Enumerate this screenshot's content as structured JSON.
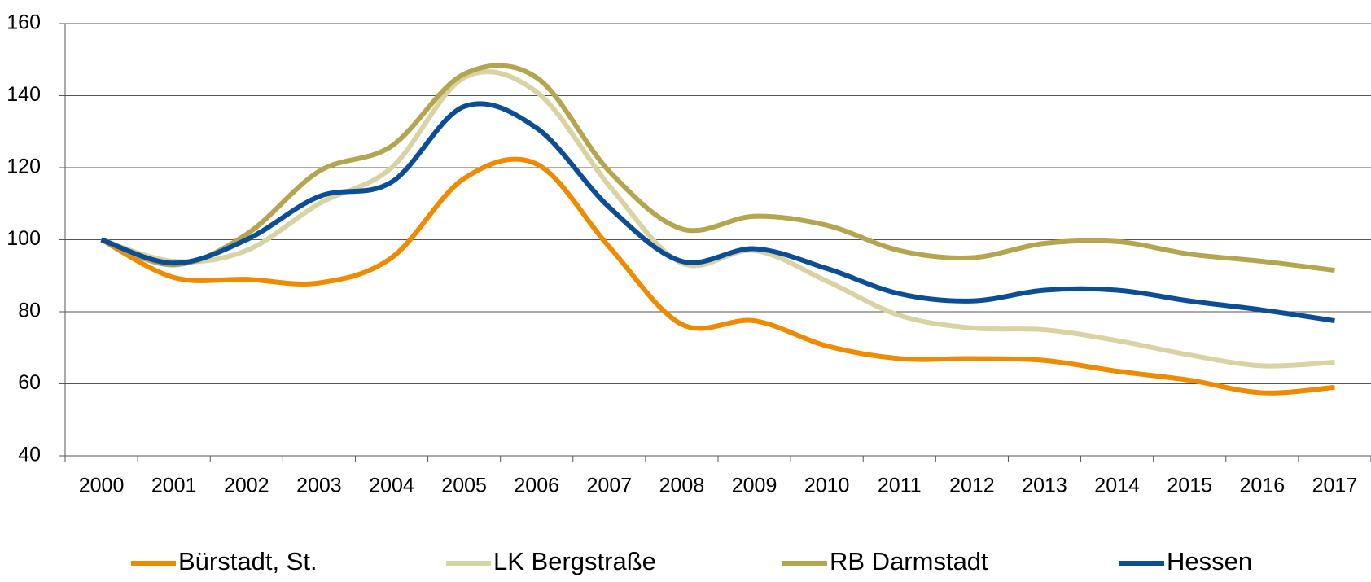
{
  "chart_data": {
    "type": "line",
    "categories": [
      "2000",
      "2001",
      "2002",
      "2003",
      "2004",
      "2005",
      "2006",
      "2007",
      "2008",
      "2009",
      "2010",
      "2011",
      "2012",
      "2013",
      "2014",
      "2015",
      "2016",
      "2017"
    ],
    "series": [
      {
        "name": "Bürstadt, St.",
        "color": "#f08a00",
        "values": [
          100,
          89.5,
          89,
          88,
          95,
          117,
          121,
          98,
          76.5,
          77.5,
          70.5,
          67,
          67,
          66.5,
          63.5,
          61,
          57.5,
          59
        ]
      },
      {
        "name": "LK Bergstraße",
        "color": "#d9d2a2",
        "values": [
          100,
          94,
          97,
          110,
          120,
          145,
          141,
          115,
          93.5,
          97,
          88.5,
          79,
          75.5,
          75,
          72,
          68,
          65,
          66
        ]
      },
      {
        "name": "RB Darmstadt",
        "color": "#b5a54f",
        "values": [
          100,
          93,
          101.5,
          119,
          126,
          146,
          145,
          119,
          103,
          106.5,
          104,
          97,
          95,
          99,
          99.5,
          96,
          94,
          91.5
        ]
      },
      {
        "name": "Hessen",
        "color": "#0b4d96",
        "values": [
          100,
          93.5,
          100,
          112,
          116,
          137,
          131,
          109,
          94,
          97.5,
          92,
          85,
          83,
          86,
          86,
          83,
          80.5,
          77.5
        ]
      }
    ],
    "ylim": [
      40,
      160
    ],
    "yticks": [
      40,
      60,
      80,
      100,
      120,
      140,
      160
    ],
    "grid": true,
    "legend": "bottom"
  }
}
